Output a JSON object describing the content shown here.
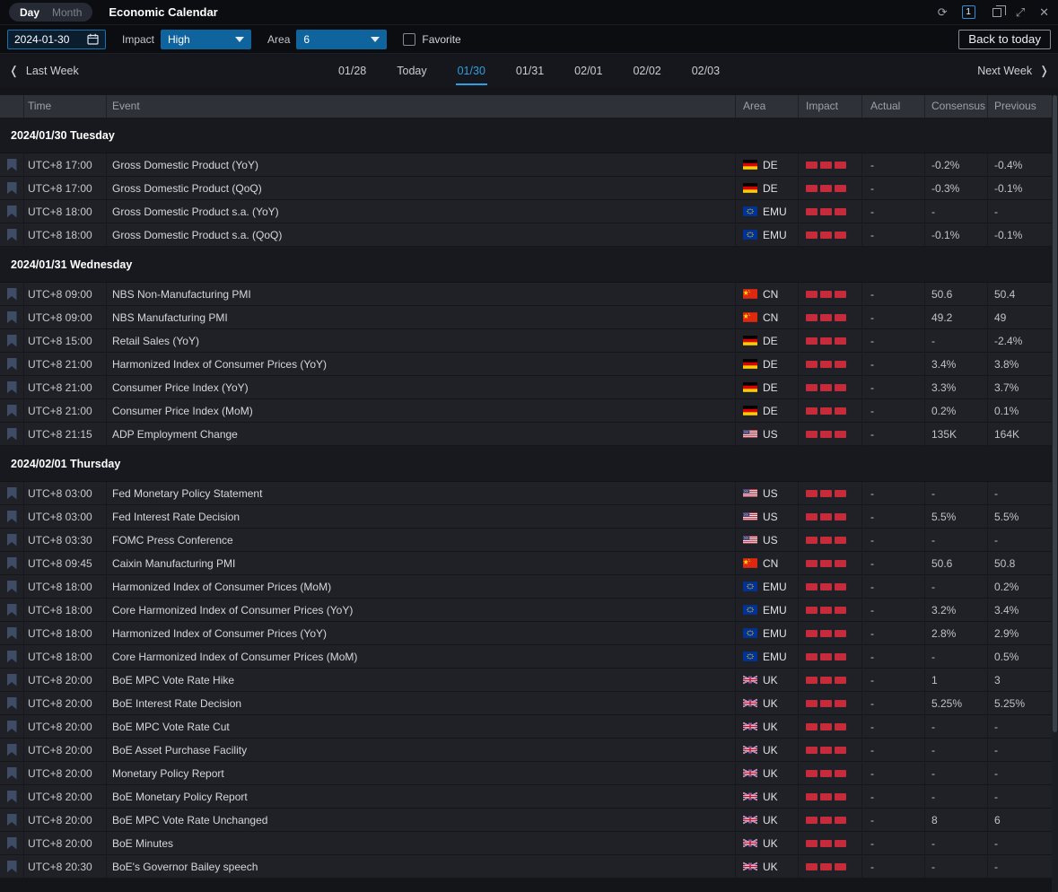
{
  "topbar": {
    "view_tabs": [
      {
        "label": "Day",
        "active": true
      },
      {
        "label": "Month",
        "active": false
      }
    ],
    "title": "Economic Calendar",
    "window_count_badge": "1"
  },
  "filters": {
    "date_value": "2024-01-30",
    "impact_label": "Impact",
    "impact_value": "High",
    "area_label": "Area",
    "area_value": "6",
    "favorite_label": "Favorite",
    "favorite_checked": false,
    "back_to_today_label": "Back to today"
  },
  "week_nav": {
    "last_week_label": "Last Week",
    "next_week_label": "Next Week",
    "days": [
      {
        "label": "01/28",
        "selected": false
      },
      {
        "label": "Today",
        "selected": false
      },
      {
        "label": "01/30",
        "selected": true
      },
      {
        "label": "01/31",
        "selected": false
      },
      {
        "label": "02/01",
        "selected": false
      },
      {
        "label": "02/02",
        "selected": false
      },
      {
        "label": "02/03",
        "selected": false
      }
    ]
  },
  "table": {
    "columns": [
      "",
      "Time",
      "Event",
      "Area",
      "Impact",
      "Actual",
      "Consensus",
      "Previous"
    ],
    "groups": [
      {
        "date_header": "2024/01/30 Tuesday",
        "rows": [
          {
            "time": "UTC+8 17:00",
            "event": "Gross Domestic Product (YoY)",
            "area": "DE",
            "impact": "High",
            "actual": "-",
            "consensus": "-0.2%",
            "previous": "-0.4%"
          },
          {
            "time": "UTC+8 17:00",
            "event": "Gross Domestic Product (QoQ)",
            "area": "DE",
            "impact": "High",
            "actual": "-",
            "consensus": "-0.3%",
            "previous": "-0.1%"
          },
          {
            "time": "UTC+8 18:00",
            "event": "Gross Domestic Product s.a. (YoY)",
            "area": "EMU",
            "impact": "High",
            "actual": "-",
            "consensus": "-",
            "previous": "-"
          },
          {
            "time": "UTC+8 18:00",
            "event": "Gross Domestic Product s.a. (QoQ)",
            "area": "EMU",
            "impact": "High",
            "actual": "-",
            "consensus": "-0.1%",
            "previous": "-0.1%"
          }
        ]
      },
      {
        "date_header": "2024/01/31 Wednesday",
        "rows": [
          {
            "time": "UTC+8 09:00",
            "event": "NBS Non-Manufacturing PMI",
            "area": "CN",
            "impact": "High",
            "actual": "-",
            "consensus": "50.6",
            "previous": "50.4"
          },
          {
            "time": "UTC+8 09:00",
            "event": "NBS Manufacturing PMI",
            "area": "CN",
            "impact": "High",
            "actual": "-",
            "consensus": "49.2",
            "previous": "49"
          },
          {
            "time": "UTC+8 15:00",
            "event": "Retail Sales (YoY)",
            "area": "DE",
            "impact": "High",
            "actual": "-",
            "consensus": "-",
            "previous": "-2.4%"
          },
          {
            "time": "UTC+8 21:00",
            "event": "Harmonized Index of Consumer Prices (YoY)",
            "area": "DE",
            "impact": "High",
            "actual": "-",
            "consensus": "3.4%",
            "previous": "3.8%"
          },
          {
            "time": "UTC+8 21:00",
            "event": "Consumer Price Index (YoY)",
            "area": "DE",
            "impact": "High",
            "actual": "-",
            "consensus": "3.3%",
            "previous": "3.7%"
          },
          {
            "time": "UTC+8 21:00",
            "event": "Consumer Price Index (MoM)",
            "area": "DE",
            "impact": "High",
            "actual": "-",
            "consensus": "0.2%",
            "previous": "0.1%"
          },
          {
            "time": "UTC+8 21:15",
            "event": "ADP Employment Change",
            "area": "US",
            "impact": "High",
            "actual": "-",
            "consensus": "135K",
            "previous": "164K"
          }
        ]
      },
      {
        "date_header": "2024/02/01 Thursday",
        "rows": [
          {
            "time": "UTC+8 03:00",
            "event": "Fed Monetary Policy Statement",
            "area": "US",
            "impact": "High",
            "actual": "-",
            "consensus": "-",
            "previous": "-"
          },
          {
            "time": "UTC+8 03:00",
            "event": "Fed Interest Rate Decision",
            "area": "US",
            "impact": "High",
            "actual": "-",
            "consensus": "5.5%",
            "previous": "5.5%"
          },
          {
            "time": "UTC+8 03:30",
            "event": "FOMC Press Conference",
            "area": "US",
            "impact": "High",
            "actual": "-",
            "consensus": "-",
            "previous": "-"
          },
          {
            "time": "UTC+8 09:45",
            "event": "Caixin Manufacturing PMI",
            "area": "CN",
            "impact": "High",
            "actual": "-",
            "consensus": "50.6",
            "previous": "50.8"
          },
          {
            "time": "UTC+8 18:00",
            "event": "Harmonized Index of Consumer Prices (MoM)",
            "area": "EMU",
            "impact": "High",
            "actual": "-",
            "consensus": "-",
            "previous": "0.2%"
          },
          {
            "time": "UTC+8 18:00",
            "event": "Core Harmonized Index of Consumer Prices (YoY)",
            "area": "EMU",
            "impact": "High",
            "actual": "-",
            "consensus": "3.2%",
            "previous": "3.4%"
          },
          {
            "time": "UTC+8 18:00",
            "event": "Harmonized Index of Consumer Prices (YoY)",
            "area": "EMU",
            "impact": "High",
            "actual": "-",
            "consensus": "2.8%",
            "previous": "2.9%"
          },
          {
            "time": "UTC+8 18:00",
            "event": "Core Harmonized Index of Consumer Prices (MoM)",
            "area": "EMU",
            "impact": "High",
            "actual": "-",
            "consensus": "-",
            "previous": "0.5%"
          },
          {
            "time": "UTC+8 20:00",
            "event": "BoE MPC Vote Rate Hike",
            "area": "UK",
            "impact": "High",
            "actual": "-",
            "consensus": "1",
            "previous": "3"
          },
          {
            "time": "UTC+8 20:00",
            "event": "BoE Interest Rate Decision",
            "area": "UK",
            "impact": "High",
            "actual": "-",
            "consensus": "5.25%",
            "previous": "5.25%"
          },
          {
            "time": "UTC+8 20:00",
            "event": "BoE MPC Vote Rate Cut",
            "area": "UK",
            "impact": "High",
            "actual": "-",
            "consensus": "-",
            "previous": "-"
          },
          {
            "time": "UTC+8 20:00",
            "event": "BoE Asset Purchase Facility",
            "area": "UK",
            "impact": "High",
            "actual": "-",
            "consensus": "-",
            "previous": "-"
          },
          {
            "time": "UTC+8 20:00",
            "event": "Monetary Policy Report",
            "area": "UK",
            "impact": "High",
            "actual": "-",
            "consensus": "-",
            "previous": "-"
          },
          {
            "time": "UTC+8 20:00",
            "event": "BoE Monetary Policy Report",
            "area": "UK",
            "impact": "High",
            "actual": "-",
            "consensus": "-",
            "previous": "-"
          },
          {
            "time": "UTC+8 20:00",
            "event": "BoE MPC Vote Rate Unchanged",
            "area": "UK",
            "impact": "High",
            "actual": "-",
            "consensus": "8",
            "previous": "6"
          },
          {
            "time": "UTC+8 20:00",
            "event": "BoE Minutes",
            "area": "UK",
            "impact": "High",
            "actual": "-",
            "consensus": "-",
            "previous": "-"
          },
          {
            "time": "UTC+8 20:30",
            "event": "BoE's Governor Bailey speech",
            "area": "UK",
            "impact": "High",
            "actual": "-",
            "consensus": "-",
            "previous": "-"
          }
        ]
      }
    ]
  },
  "colors": {
    "accent_blue": "#1a72ad",
    "dropdown_blue": "#0f649e",
    "selected_day_blue": "#2e9fe1",
    "impact_red": "#c52b3a"
  }
}
